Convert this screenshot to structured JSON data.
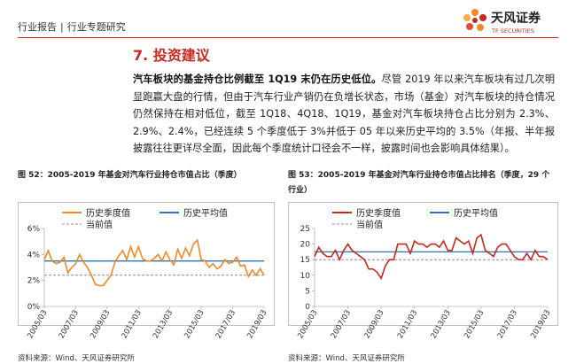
{
  "header": {
    "report": "行业报告",
    "separator": "|",
    "subtitle": "行业专题研究",
    "logo_cn": "天风证券",
    "logo_en": "TF SECURITIES"
  },
  "section": {
    "title": "7. 投资建议"
  },
  "paragraph": {
    "bold": "汽车板块的基金持仓比例截至 1Q19 末仍在历史低位。",
    "text": "尽管 2019 年以来汽车板块有过几次明显跑赢大盘的行情，但由于汽车行业产销仍在负增长状态，市场（基金）对汽车板块的持仓情况仍然保持在相对低位，截至 1Q18、4Q18、1Q19，基金对汽车板块持仓占比分别为 2.3%、2.9%、2.4%，已经连续 5 个季度低于 3%并低于 05 年以来历史平均的 3.5%（年报、半年报披露往往更详尽全面，因此每个季度统计口径会不一样，披露时间也会影响具体结果）。"
  },
  "chart_data": [
    {
      "type": "line",
      "title": "图 52：2005-2019 年基金对汽车行业持仓市值占比（季度）",
      "source": "资料来源：Wind、天风证券研究所",
      "categories": [
        "2005/03",
        null,
        null,
        null,
        null,
        null,
        null,
        null,
        "2007/03",
        null,
        null,
        null,
        null,
        null,
        null,
        null,
        "2009/03",
        null,
        null,
        null,
        null,
        null,
        null,
        null,
        "2011/03",
        null,
        null,
        null,
        null,
        null,
        null,
        null,
        "2013/03",
        null,
        null,
        null,
        null,
        null,
        null,
        null,
        "2015/03",
        null,
        null,
        null,
        null,
        null,
        null,
        null,
        "2017/03",
        null,
        null,
        null,
        null,
        null,
        null,
        null,
        "2019/03"
      ],
      "series": [
        {
          "name": "历史季度值",
          "color": "#f08a24",
          "values": [
            3.6,
            4.3,
            3.5,
            3.3,
            3.4,
            3.8,
            2.6,
            3.0,
            3.3,
            4.0,
            3.4,
            3.0,
            2.4,
            1.7,
            1.6,
            1.6,
            2.0,
            2.4,
            3.4,
            3.9,
            4.3,
            3.6,
            4.6,
            3.8,
            4.6,
            3.7,
            3.5,
            3.5,
            3.7,
            4.0,
            3.5,
            4.2,
            3.6,
            3.2,
            4.4,
            3.7,
            4.5,
            3.9,
            4.8,
            5.1,
            3.6,
            3.5,
            3.0,
            3.3,
            2.9,
            3.1,
            3.6,
            3.3,
            3.4,
            3.8,
            3.1,
            3.2,
            2.3,
            2.8,
            2.4,
            2.9,
            2.4
          ]
        }
      ],
      "hlines": [
        {
          "name": "历史平均值",
          "color": "#2e75b6",
          "value": 3.5,
          "dashed": false
        },
        {
          "name": "当前值",
          "color": "#8c8c8c",
          "value": 2.4,
          "dashed": true
        }
      ],
      "ylim": [
        0,
        6
      ],
      "yticks": [
        {
          "value": 0,
          "label": "0%"
        },
        {
          "value": 2,
          "label": "2%"
        },
        {
          "value": 4,
          "label": "4%"
        },
        {
          "value": 6,
          "label": "6%"
        }
      ],
      "grid": false,
      "legend": "top"
    },
    {
      "type": "line",
      "title": "图 53：2005-2019 年基金对汽车行业持仓市值占比排名（季度，29 个行业）",
      "source": "资料来源：Wind、天风证券研究所",
      "categories": [
        "2005/03",
        null,
        null,
        null,
        null,
        null,
        null,
        null,
        "2007/03",
        null,
        null,
        null,
        null,
        null,
        null,
        null,
        "2009/03",
        null,
        null,
        null,
        null,
        null,
        null,
        null,
        "2011/03",
        null,
        null,
        null,
        null,
        null,
        null,
        null,
        "2013/03",
        null,
        null,
        null,
        null,
        null,
        null,
        null,
        "2015/03",
        null,
        null,
        null,
        null,
        null,
        null,
        null,
        "2017/03",
        null,
        null,
        null,
        null,
        null,
        null,
        null,
        "2019/03"
      ],
      "series": [
        {
          "name": "历史季度值",
          "color": "#c8281e",
          "values": [
            16,
            19,
            17,
            16,
            16,
            18,
            15,
            18,
            20,
            18,
            17,
            16,
            15,
            12,
            12,
            11,
            9,
            13,
            15,
            15,
            20,
            20,
            20,
            17,
            21,
            20,
            20,
            19,
            20,
            20,
            19,
            21,
            18,
            18,
            22,
            21,
            20,
            21,
            17,
            22,
            23,
            18,
            17,
            16,
            19,
            20,
            20,
            18,
            16,
            15,
            15,
            17,
            15,
            18,
            16,
            16,
            15
          ]
        }
      ],
      "hlines": [
        {
          "name": "历史平均值",
          "color": "#2e75b6",
          "value": 17.5,
          "dashed": false
        },
        {
          "name": "当前值",
          "color": "#8c8c8c",
          "value": 15,
          "dashed": true
        }
      ],
      "ylim": [
        0,
        25
      ],
      "yticks": [
        0,
        5,
        10,
        15,
        20,
        25
      ],
      "grid": false,
      "legend": "top"
    }
  ]
}
